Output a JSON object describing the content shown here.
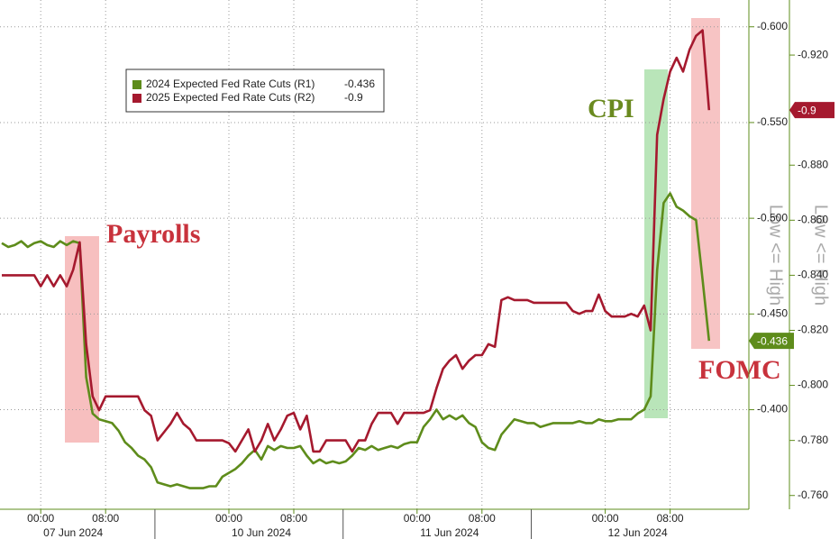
{
  "chart_data": {
    "type": "line",
    "categories": [
      null,
      null,
      null,
      null,
      null,
      null,
      "00:00",
      null,
      null,
      null,
      null,
      null,
      null,
      null,
      null,
      null,
      "08:00",
      null,
      null,
      null,
      null,
      null,
      null,
      null,
      null,
      null,
      null,
      null,
      null,
      null,
      null,
      null,
      null,
      null,
      null,
      "00:00",
      null,
      null,
      null,
      null,
      null,
      null,
      null,
      null,
      null,
      "08:00",
      null,
      null,
      null,
      null,
      null,
      null,
      null,
      null,
      null,
      null,
      null,
      null,
      null,
      null,
      null,
      null,
      null,
      null,
      "00:00",
      null,
      null,
      null,
      null,
      null,
      null,
      null,
      null,
      null,
      "08:00",
      null,
      null,
      null,
      null,
      null,
      null,
      null,
      null,
      null,
      null,
      null,
      null,
      null,
      null,
      null,
      null,
      null,
      null,
      "00:00",
      null,
      null,
      null,
      null,
      null,
      null,
      null,
      null,
      null,
      "08:00",
      null,
      null,
      null,
      null,
      null,
      null
    ],
    "day_labels": [
      "07 Jun 2024",
      "10 Jun 2024",
      "11 Jun 2024",
      "12 Jun 2024"
    ],
    "series": [
      {
        "name": "2024 Expected Fed Rate Cuts (R1)",
        "color": "#5e8c1b",
        "axis": "y",
        "values": [
          -0.487,
          -0.485,
          -0.486,
          -0.488,
          -0.485,
          -0.487,
          -0.488,
          -0.486,
          -0.485,
          -0.488,
          -0.486,
          -0.488,
          -0.487,
          -0.417,
          -0.398,
          -0.395,
          -0.394,
          -0.393,
          -0.389,
          -0.383,
          -0.38,
          -0.376,
          -0.374,
          -0.37,
          -0.362,
          -0.361,
          -0.36,
          -0.361,
          -0.36,
          -0.359,
          -0.359,
          -0.359,
          -0.36,
          -0.36,
          -0.365,
          -0.367,
          -0.369,
          -0.372,
          -0.376,
          -0.379,
          -0.374,
          -0.381,
          -0.379,
          -0.381,
          -0.38,
          -0.38,
          -0.381,
          -0.376,
          -0.372,
          -0.374,
          -0.372,
          -0.373,
          -0.372,
          -0.373,
          -0.376,
          -0.38,
          -0.379,
          -0.381,
          -0.379,
          -0.38,
          -0.381,
          -0.38,
          -0.382,
          -0.383,
          -0.383,
          -0.391,
          -0.395,
          -0.4,
          -0.395,
          -0.397,
          -0.395,
          -0.397,
          -0.393,
          -0.391,
          -0.383,
          -0.38,
          -0.379,
          -0.387,
          -0.391,
          -0.395,
          -0.394,
          -0.393,
          -0.393,
          -0.391,
          -0.392,
          -0.393,
          -0.393,
          -0.393,
          -0.393,
          -0.394,
          -0.393,
          -0.393,
          -0.395,
          -0.394,
          -0.394,
          -0.395,
          -0.395,
          -0.395,
          -0.398,
          -0.4,
          -0.407,
          -0.473,
          -0.508,
          -0.513,
          -0.506,
          -0.504,
          -0.501,
          -0.499,
          -0.468,
          -0.436
        ]
      },
      {
        "name": "2025 Expected Fed Rate Cuts (R2)",
        "color": "#a5192e",
        "axis": "y2",
        "values": [
          -0.84,
          -0.84,
          -0.84,
          -0.84,
          -0.84,
          -0.84,
          -0.836,
          -0.84,
          -0.836,
          -0.84,
          -0.836,
          -0.842,
          -0.852,
          -0.815,
          -0.796,
          -0.791,
          -0.796,
          -0.796,
          -0.796,
          -0.796,
          -0.796,
          -0.796,
          -0.791,
          -0.789,
          -0.78,
          -0.783,
          -0.786,
          -0.79,
          -0.786,
          -0.784,
          -0.78,
          -0.78,
          -0.78,
          -0.78,
          -0.78,
          -0.779,
          -0.776,
          -0.78,
          -0.784,
          -0.776,
          -0.78,
          -0.786,
          -0.78,
          -0.784,
          -0.789,
          -0.79,
          -0.784,
          -0.789,
          -0.776,
          -0.776,
          -0.78,
          -0.78,
          -0.78,
          -0.78,
          -0.776,
          -0.78,
          -0.78,
          -0.786,
          -0.79,
          -0.79,
          -0.79,
          -0.786,
          -0.79,
          -0.79,
          -0.79,
          -0.79,
          -0.791,
          -0.799,
          -0.806,
          -0.809,
          -0.811,
          -0.806,
          -0.809,
          -0.811,
          -0.811,
          -0.815,
          -0.814,
          -0.831,
          -0.832,
          -0.831,
          -0.831,
          -0.831,
          -0.83,
          -0.83,
          -0.83,
          -0.83,
          -0.83,
          -0.83,
          -0.827,
          -0.826,
          -0.827,
          -0.827,
          -0.833,
          -0.827,
          -0.825,
          -0.825,
          -0.825,
          -0.826,
          -0.825,
          -0.829,
          -0.82,
          -0.891,
          -0.904,
          -0.914,
          -0.919,
          -0.914,
          -0.922,
          -0.927,
          -0.929,
          -0.9
        ]
      }
    ],
    "ylim": [
      -0.348,
      -0.614
    ],
    "yticks": [
      {
        "value": -0.6,
        "label": "-0.600"
      },
      {
        "value": -0.55,
        "label": "-0.550"
      },
      {
        "value": -0.5,
        "label": "-0.500"
      },
      {
        "value": -0.45,
        "label": "-0.450"
      },
      {
        "value": -0.4,
        "label": "-0.400"
      }
    ],
    "y2lim": [
      -0.755,
      -0.94
    ],
    "y2ticks": [
      {
        "value": -0.92,
        "label": "-0.920"
      },
      {
        "value": -0.88,
        "label": "-0.880"
      },
      {
        "value": -0.86,
        "label": "-0.860"
      },
      {
        "value": -0.84,
        "label": "-0.840"
      },
      {
        "value": -0.82,
        "label": "-0.820"
      },
      {
        "value": -0.8,
        "label": "-0.800"
      },
      {
        "value": -0.78,
        "label": "-0.780"
      },
      {
        "value": -0.76,
        "label": "-0.760"
      }
    ],
    "y_label": "Low <= High",
    "y2_label": "Low <= High",
    "annotations": [
      "Payrolls",
      "CPI",
      "FOMC"
    ],
    "grid": true
  }
}
